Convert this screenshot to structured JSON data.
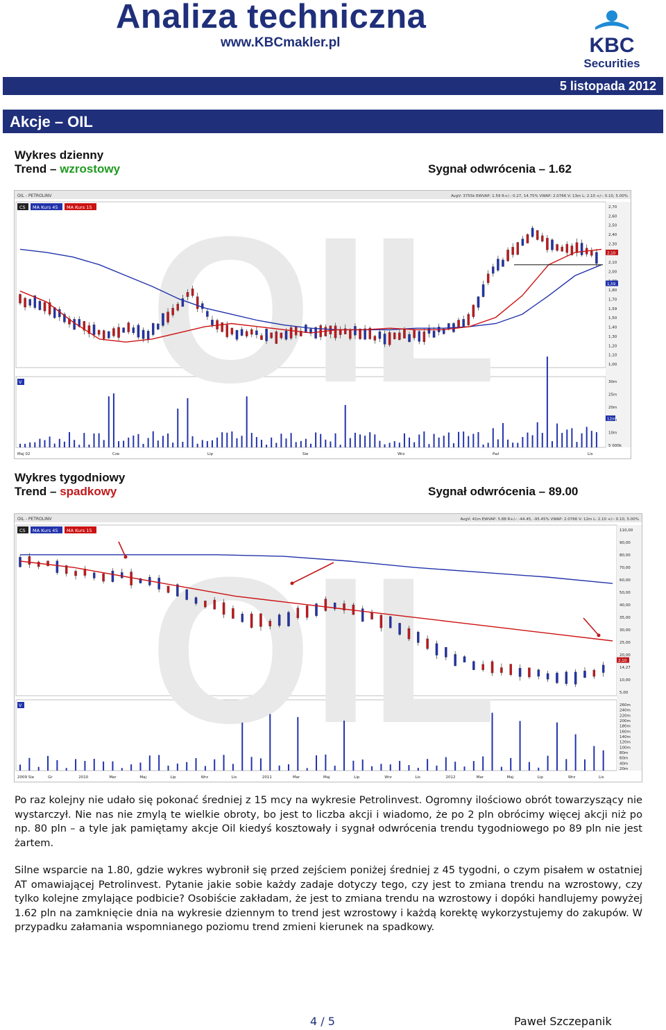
{
  "header": {
    "title": "Analiza techniczna",
    "url": "www.KBCmakler.pl",
    "logo_text": "KBC",
    "logo_sub": "Securities",
    "date": "5 listopada 2012"
  },
  "section": {
    "title": "Akcje – OIL"
  },
  "daily": {
    "label": "Wykres dzienny",
    "trend_prefix": "Trend – ",
    "trend_value": "wzrostowy",
    "signal": "Sygnał odwrócenia – 1.62",
    "chart": {
      "ticker": "OIL - PETROLINV",
      "info": "AvgV: 3755k  EWVAP: 1.59  R+/-: 0.27, 14.75%  VWAP: 2.0766  V: 13m  L: 2.10  +/-: 0.10, 5.00%",
      "legend": [
        "CS",
        "MA Kurs 45",
        "MA Kurs 15"
      ],
      "price_ticks": [
        "2,70",
        "2,60",
        "2,50",
        "2,40",
        "2,30",
        "2,20",
        "2,10",
        "2,00",
        "1,90",
        "1,80",
        "1,70",
        "1,59",
        "1,50",
        "1,40",
        "1,30",
        "1,20",
        "1,10",
        "1,00"
      ],
      "current_label": "2,10",
      "marker_label": "1,59",
      "volume_label": "V",
      "volume_ticks": [
        "30m",
        "25m",
        "20m",
        "15m",
        "10m",
        "5 000k"
      ],
      "volume_marker": "12m",
      "x_labels": [
        "Maj 02",
        "Cze",
        "Lip",
        "Sie",
        "Wrz",
        "Paź",
        "Lis"
      ]
    }
  },
  "weekly": {
    "label": "Wykres tygodniowy",
    "trend_prefix": "Trend – ",
    "trend_value": "spadkowy",
    "signal": "Sygnał odwrócenia – 89.00",
    "chart": {
      "ticker": "OIL - PETROLINV",
      "info": "AvgV: 41m  EWVAP: 5.88  R+/-: -44.45, -95.45%  VWAP: 2.0766  V: 12m  L: 2.10  +/-: 0.10, 5.00%",
      "legend": [
        "CS",
        "MA Kurs 45",
        "MA Kurs 15"
      ],
      "price_ticks": [
        "110,00",
        "90,00",
        "80,00",
        "70,00",
        "60,00",
        "50,00",
        "40,00",
        "35,00",
        "30,00",
        "25,00",
        "20,00",
        "14,27",
        "10,00",
        "5,00"
      ],
      "current_label": "2,10",
      "volume_label": "V",
      "volume_ticks": [
        "260m",
        "240m",
        "220m",
        "200m",
        "180m",
        "160m",
        "140m",
        "120m",
        "100m",
        "80m",
        "60m",
        "40m",
        "20m"
      ],
      "x_labels": [
        "2009 Sie",
        "Gr",
        "2010",
        "Mar",
        "Maj",
        "Lip",
        "Wrz",
        "Lis",
        "2011",
        "Mar",
        "Maj",
        "Lip",
        "Wrz",
        "Lis",
        "2012",
        "Mar",
        "Maj",
        "Lip",
        "Wrz",
        "Lis"
      ]
    }
  },
  "watermark": "OIL",
  "paragraphs": [
    "Po raz kolejny nie udało się pokonać średniej z 15 mcy na wykresie Petrolinvest. Ogromny ilościowo obrót towarzyszący nie wystarczył. Nie nas nie zmylą te wielkie obroty, bo jest to liczba akcji i wiadomo, że po 2 pln obrócimy więcej akcji niż po np. 80 pln – a tyle jak pamiętamy akcje Oil kiedyś kosztowały i sygnał odwrócenia trendu tygodniowego po 89 pln nie jest żartem.",
    "Silne wsparcie na 1.80, gdzie wykres wybronił się przed zejściem poniżej średniej z 45 tygodni, o czym pisałem w ostatniej AT omawiającej Petrolinvest. Pytanie jakie sobie każdy zadaje dotyczy tego, czy jest to zmiana trendu na wzrostowy, czy tylko kolejne zmylające podbicie? Osobiście zakładam, że jest to zmiana trendu na wzrostowy i dopóki handlujemy powyżej 1.62 pln na zamknięcie dnia na wykresie dziennym to trend jest wzrostowy i każdą korektę wykorzystujemy do zakupów. W przypadku załamania wspomnianego poziomu trend zmieni kierunek na spadkowy."
  ],
  "footer": {
    "page": "4 / 5",
    "author": "Paweł Szczepanik"
  },
  "colors": {
    "brand": "#1f2f7a",
    "up": "#1f9a1f",
    "down": "#c0181c",
    "ma45": "#2233aa",
    "ma15": "#cc1111"
  }
}
